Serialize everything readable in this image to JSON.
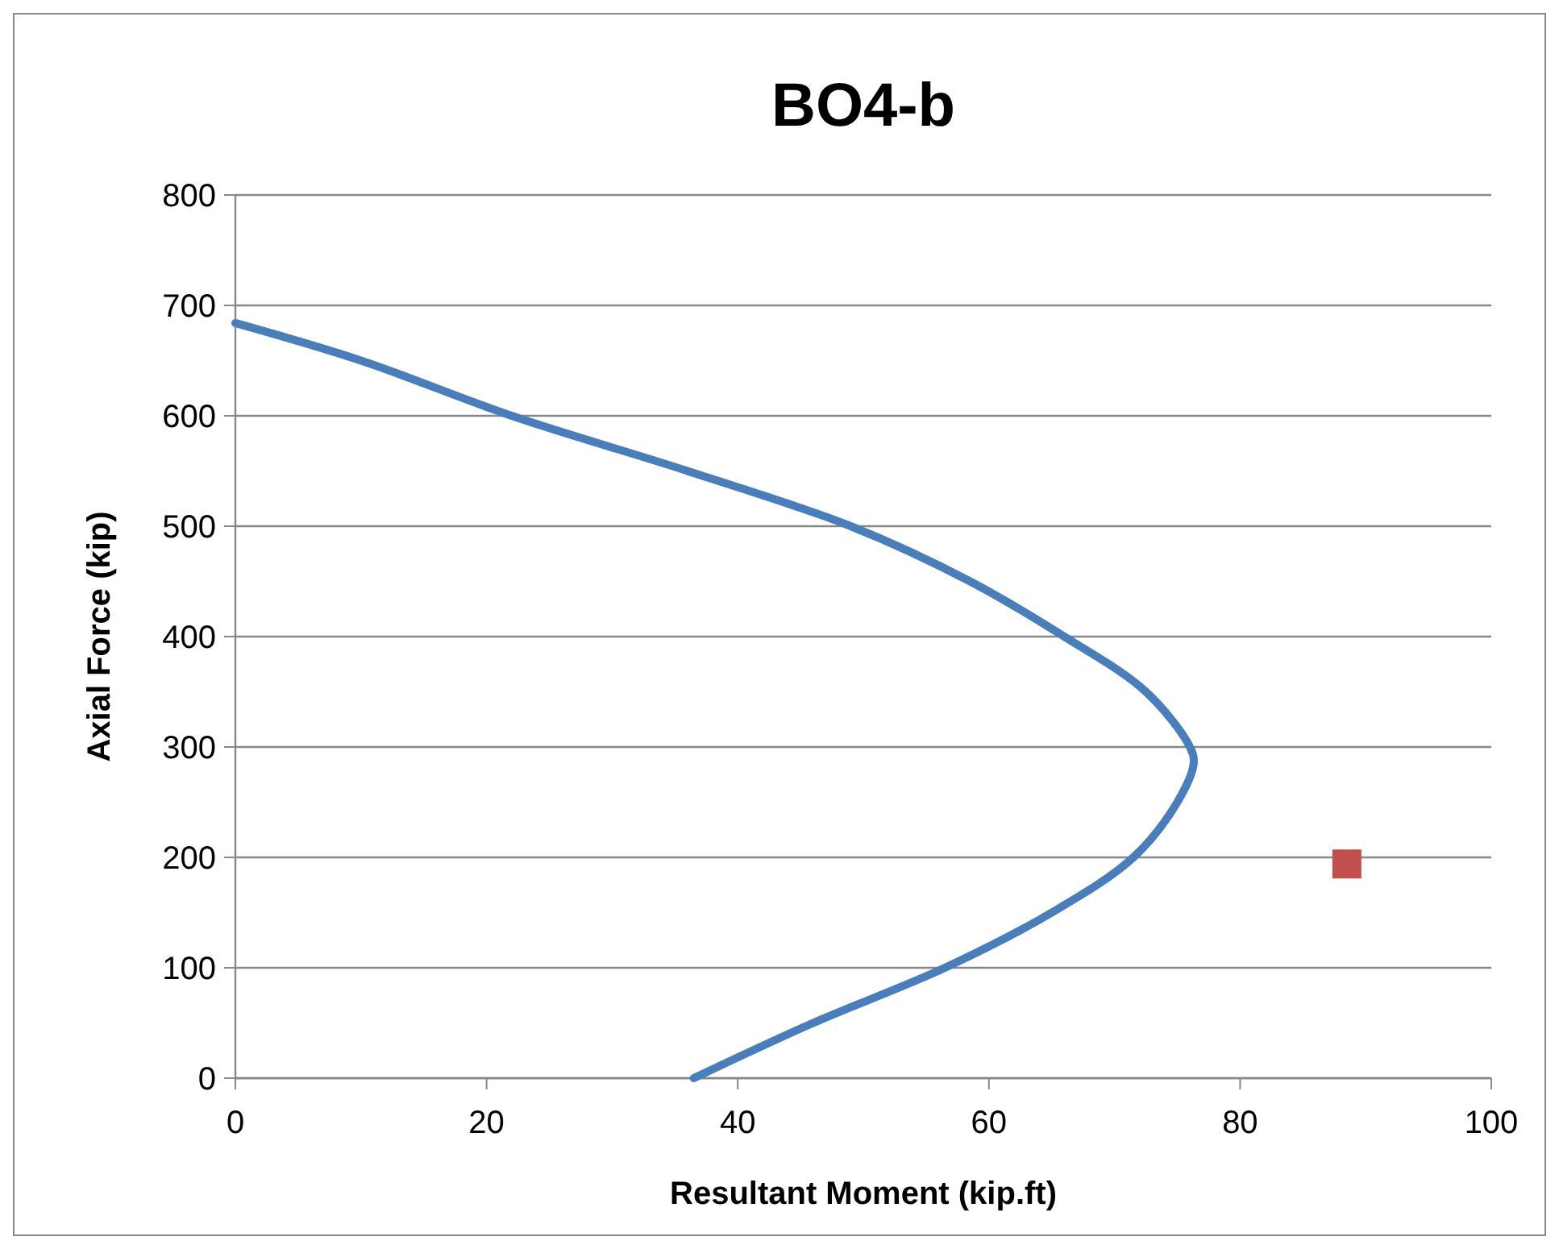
{
  "chart_data": {
    "type": "line",
    "title": "BO4-b",
    "xlabel": "Resultant Moment (kip.ft)",
    "ylabel": "Axial Force (kip)",
    "xlim": [
      0,
      100
    ],
    "xticks": [
      0,
      20,
      40,
      60,
      80,
      100
    ],
    "ylim": [
      0,
      800
    ],
    "yticks": [
      0,
      100,
      200,
      300,
      400,
      500,
      600,
      700,
      800
    ],
    "grid": "y",
    "series": [
      {
        "color": "#4a7ebb",
        "marker": "none",
        "x": [
          0,
          10,
          22,
          36,
          49,
          58.5,
          66,
          72.5,
          76,
          76.3,
          75,
          71.5,
          65,
          56.5,
          46,
          36.5
        ],
        "values": [
          684,
          650,
          600,
          550,
          500,
          450,
          400,
          350,
          300,
          285,
          250,
          200,
          150,
          100,
          50,
          0
        ]
      },
      {
        "type": "scatter",
        "color": "#c0504d",
        "marker": "square",
        "x": [
          88.5
        ],
        "values": [
          194
        ]
      }
    ]
  }
}
